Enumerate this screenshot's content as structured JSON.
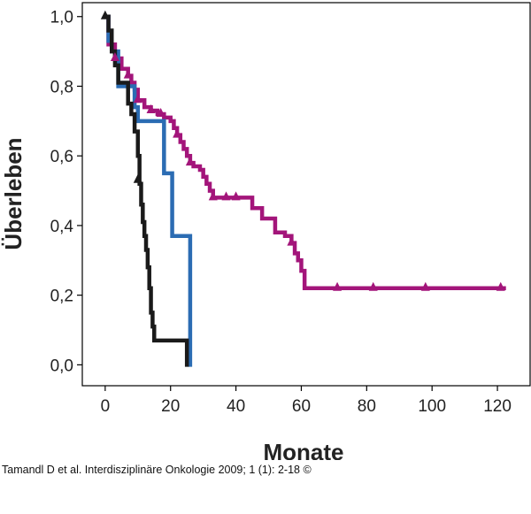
{
  "chart_data": {
    "type": "line",
    "step": true,
    "xlabel": "Monate",
    "ylabel": "Überleben",
    "xlim": [
      -7,
      130
    ],
    "ylim": [
      -0.06,
      1.04
    ],
    "xticks": [
      0,
      20,
      40,
      60,
      80,
      100,
      120
    ],
    "xtick_labels": [
      "0",
      "20",
      "40",
      "60",
      "80",
      "100",
      "120"
    ],
    "yticks": [
      0.0,
      0.2,
      0.4,
      0.6,
      0.8,
      1.0
    ],
    "ytick_labels": [
      "0,0",
      "0,2",
      "0,4",
      "0,6",
      "0,8",
      "1,0"
    ],
    "grid": false,
    "series": [
      {
        "color": "#a3157a",
        "marker": "triangle",
        "points": [
          [
            0,
            1.0
          ],
          [
            1,
            0.92
          ],
          [
            3,
            0.88
          ],
          [
            5,
            0.85
          ],
          [
            7,
            0.83
          ],
          [
            8,
            0.81
          ],
          [
            9,
            0.79
          ],
          [
            10,
            0.76
          ],
          [
            12,
            0.74
          ],
          [
            14,
            0.73
          ],
          [
            16,
            0.72
          ],
          [
            18,
            0.71
          ],
          [
            20,
            0.7
          ],
          [
            21,
            0.68
          ],
          [
            22,
            0.66
          ],
          [
            23,
            0.64
          ],
          [
            24,
            0.62
          ],
          [
            25,
            0.6
          ],
          [
            26,
            0.58
          ],
          [
            27,
            0.57
          ],
          [
            29,
            0.56
          ],
          [
            30,
            0.54
          ],
          [
            31,
            0.52
          ],
          [
            32,
            0.5
          ],
          [
            33,
            0.48
          ],
          [
            42,
            0.48
          ],
          [
            45,
            0.45
          ],
          [
            48,
            0.42
          ],
          [
            52,
            0.38
          ],
          [
            55,
            0.37
          ],
          [
            57,
            0.35
          ],
          [
            58,
            0.32
          ],
          [
            59,
            0.3
          ],
          [
            60,
            0.27
          ],
          [
            61,
            0.22
          ],
          [
            122,
            0.22
          ]
        ],
        "censored": [
          [
            3,
            0.88
          ],
          [
            7,
            0.83
          ],
          [
            10,
            0.76
          ],
          [
            14,
            0.73
          ],
          [
            17,
            0.72
          ],
          [
            22,
            0.66
          ],
          [
            26,
            0.58
          ],
          [
            33,
            0.48
          ],
          [
            37,
            0.48
          ],
          [
            40,
            0.48
          ],
          [
            57,
            0.35
          ],
          [
            71,
            0.22
          ],
          [
            82,
            0.22
          ],
          [
            98,
            0.22
          ],
          [
            121,
            0.22
          ]
        ]
      },
      {
        "color": "#2b6cb3",
        "marker": "none",
        "points": [
          [
            0,
            1.0
          ],
          [
            1,
            0.93
          ],
          [
            2,
            0.9
          ],
          [
            4,
            0.8
          ],
          [
            8,
            0.8
          ],
          [
            9,
            0.74
          ],
          [
            10,
            0.7
          ],
          [
            17,
            0.7
          ],
          [
            18,
            0.55
          ],
          [
            20,
            0.55
          ],
          [
            20.5,
            0.37
          ],
          [
            26,
            0.37
          ],
          [
            26,
            0.0
          ]
        ],
        "censored": []
      },
      {
        "color": "#1a1a1a",
        "marker": "triangle",
        "points": [
          [
            0,
            1.0
          ],
          [
            1,
            0.96
          ],
          [
            2,
            0.9
          ],
          [
            3,
            0.86
          ],
          [
            4,
            0.81
          ],
          [
            6,
            0.81
          ],
          [
            7,
            0.75
          ],
          [
            8,
            0.72
          ],
          [
            9,
            0.67
          ],
          [
            10,
            0.6
          ],
          [
            10.5,
            0.52
          ],
          [
            11,
            0.46
          ],
          [
            11.5,
            0.41
          ],
          [
            12,
            0.37
          ],
          [
            12.5,
            0.33
          ],
          [
            13,
            0.28
          ],
          [
            13.5,
            0.22
          ],
          [
            14,
            0.15
          ],
          [
            14.5,
            0.11
          ],
          [
            15,
            0.07
          ],
          [
            25,
            0.07
          ],
          [
            25,
            0.0
          ]
        ],
        "censored": [
          [
            0,
            1.0
          ],
          [
            10,
            0.53
          ]
        ]
      }
    ]
  },
  "caption": "Tamandl D et al. Interdisziplinäre Onkologie 2009; 1 (1): 2-18 ©"
}
